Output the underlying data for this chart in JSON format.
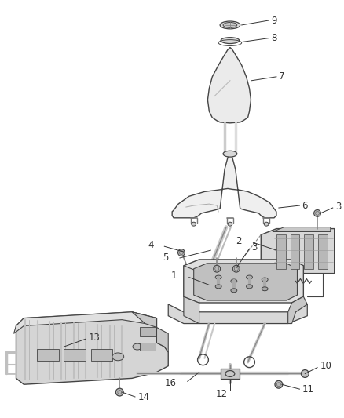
{
  "bg_color": "#ffffff",
  "line_color": "#444444",
  "label_color": "#333333",
  "label_fontsize": 8.5,
  "fig_width": 4.38,
  "fig_height": 5.33,
  "dpi": 100
}
